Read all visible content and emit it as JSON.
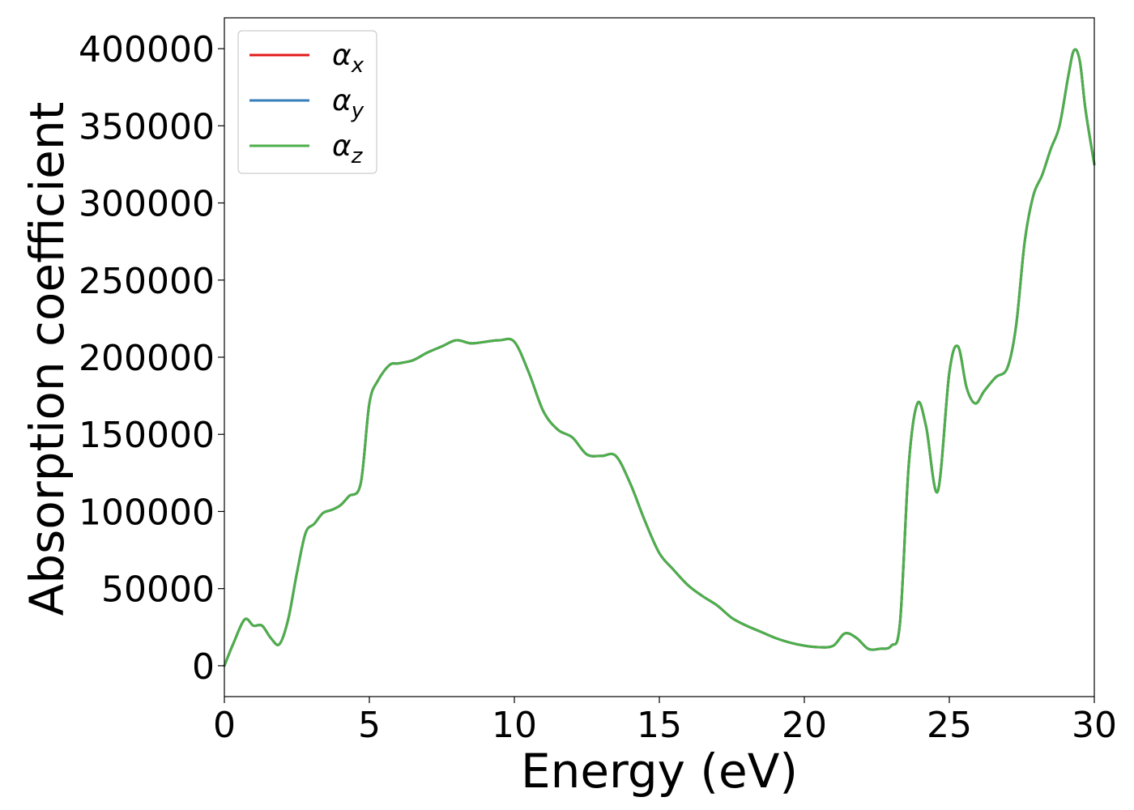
{
  "chart_data": {
    "type": "line",
    "xlabel": "Energy (eV)",
    "ylabel": "Absorption coefficient",
    "xlim": [
      0,
      30
    ],
    "ylim": [
      -20000,
      420000
    ],
    "x_ticks": [
      0,
      5,
      10,
      15,
      20,
      25,
      30
    ],
    "y_ticks": [
      0,
      50000,
      100000,
      150000,
      200000,
      250000,
      300000,
      350000,
      400000
    ],
    "grid": false,
    "legend_position": "top-left",
    "x": [
      0,
      0.3,
      0.7,
      1.0,
      1.3,
      1.6,
      1.9,
      2.2,
      2.5,
      2.8,
      3.1,
      3.4,
      3.7,
      4.0,
      4.3,
      4.7,
      5.0,
      5.3,
      5.7,
      6.0,
      6.5,
      7.0,
      7.5,
      8.0,
      8.5,
      9.0,
      9.5,
      10.0,
      10.5,
      11.0,
      11.5,
      12.0,
      12.5,
      13.0,
      13.5,
      14.0,
      14.5,
      15.0,
      15.5,
      16.0,
      16.5,
      17.0,
      17.5,
      18.0,
      18.5,
      19.0,
      19.5,
      20.0,
      20.5,
      21.0,
      21.4,
      21.8,
      22.2,
      22.6,
      23.0,
      23.3,
      23.6,
      23.9,
      24.2,
      24.6,
      25.0,
      25.3,
      25.6,
      25.9,
      26.2,
      26.6,
      27.0,
      27.3,
      27.6,
      27.9,
      28.2,
      28.5,
      28.8,
      29.1,
      29.3,
      29.5,
      29.7,
      30.0
    ],
    "series": [
      {
        "name": "α_x",
        "color": "#e41a1c",
        "values": [
          0,
          14000,
          30000,
          26000,
          26000,
          18000,
          14000,
          30000,
          60000,
          86000,
          92000,
          99000,
          101000,
          104000,
          110000,
          118000,
          170000,
          185000,
          195000,
          196000,
          198000,
          203000,
          207000,
          211000,
          209000,
          210000,
          211000,
          210000,
          190000,
          165000,
          153000,
          148000,
          137000,
          136000,
          136000,
          118000,
          94000,
          73000,
          62000,
          52000,
          45000,
          39000,
          31000,
          26000,
          22000,
          18000,
          15000,
          13000,
          12000,
          13000,
          21000,
          18000,
          11000,
          11000,
          13000,
          28000,
          130000,
          170000,
          155000,
          113000,
          190000,
          207000,
          180000,
          170000,
          178000,
          187000,
          193000,
          220000,
          275000,
          305000,
          318000,
          335000,
          350000,
          382000,
          399000,
          392000,
          360000,
          325000
        ]
      },
      {
        "name": "α_y",
        "color": "#377eb8",
        "values": [
          0,
          14000,
          30000,
          26000,
          26000,
          18000,
          14000,
          30000,
          60000,
          86000,
          92000,
          99000,
          101000,
          104000,
          110000,
          118000,
          170000,
          185000,
          195000,
          196000,
          198000,
          203000,
          207000,
          211000,
          209000,
          210000,
          211000,
          210000,
          190000,
          165000,
          153000,
          148000,
          137000,
          136000,
          136000,
          118000,
          94000,
          73000,
          62000,
          52000,
          45000,
          39000,
          31000,
          26000,
          22000,
          18000,
          15000,
          13000,
          12000,
          13000,
          21000,
          18000,
          11000,
          11000,
          13000,
          28000,
          130000,
          170000,
          155000,
          113000,
          190000,
          207000,
          180000,
          170000,
          178000,
          187000,
          193000,
          220000,
          275000,
          305000,
          318000,
          335000,
          350000,
          382000,
          399000,
          392000,
          360000,
          325000
        ]
      },
      {
        "name": "α_z",
        "color": "#4daf4a",
        "values": [
          0,
          14000,
          30000,
          26000,
          26000,
          18000,
          14000,
          30000,
          60000,
          86000,
          92000,
          99000,
          101000,
          104000,
          110000,
          118000,
          170000,
          185000,
          195000,
          196000,
          198000,
          203000,
          207000,
          211000,
          209000,
          210000,
          211000,
          210000,
          190000,
          165000,
          153000,
          148000,
          137000,
          136000,
          136000,
          118000,
          94000,
          73000,
          62000,
          52000,
          45000,
          39000,
          31000,
          26000,
          22000,
          18000,
          15000,
          13000,
          12000,
          13000,
          21000,
          18000,
          11000,
          11000,
          13000,
          28000,
          130000,
          170000,
          155000,
          113000,
          190000,
          207000,
          180000,
          170000,
          178000,
          187000,
          193000,
          220000,
          275000,
          305000,
          318000,
          335000,
          350000,
          382000,
          399000,
          392000,
          360000,
          325000
        ]
      }
    ]
  }
}
